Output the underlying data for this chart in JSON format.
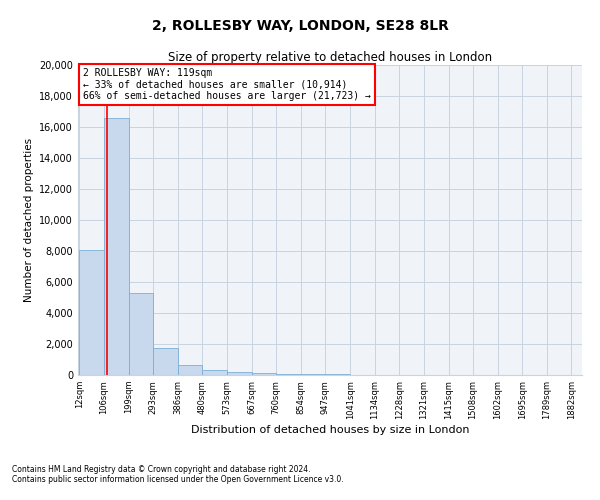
{
  "title": "2, ROLLESBY WAY, LONDON, SE28 8LR",
  "subtitle": "Size of property relative to detached houses in London",
  "xlabel": "Distribution of detached houses by size in London",
  "ylabel": "Number of detached properties",
  "bar_color": "#c9d9ed",
  "bar_edge_color": "#7aaed6",
  "grid_color": "#c8d4e0",
  "annotation_text": "2 ROLLESBY WAY: 119sqm\n← 33% of detached houses are smaller (10,914)\n66% of semi-detached houses are larger (21,723) →",
  "annotation_box_color": "white",
  "annotation_box_edge": "red",
  "red_line_x": 119,
  "footer1": "Contains HM Land Registry data © Crown copyright and database right 2024.",
  "footer2": "Contains public sector information licensed under the Open Government Licence v3.0.",
  "bin_edges": [
    12,
    106,
    199,
    293,
    386,
    480,
    573,
    667,
    760,
    854,
    947,
    1041,
    1134,
    1228,
    1321,
    1415,
    1508,
    1602,
    1695,
    1789,
    1882
  ],
  "bin_counts": [
    8050,
    16600,
    5300,
    1750,
    650,
    350,
    200,
    100,
    70,
    50,
    40,
    30,
    25,
    20,
    15,
    12,
    10,
    8,
    7,
    6
  ],
  "ylim": [
    0,
    20000
  ],
  "yticks": [
    0,
    2000,
    4000,
    6000,
    8000,
    10000,
    12000,
    14000,
    16000,
    18000,
    20000
  ]
}
